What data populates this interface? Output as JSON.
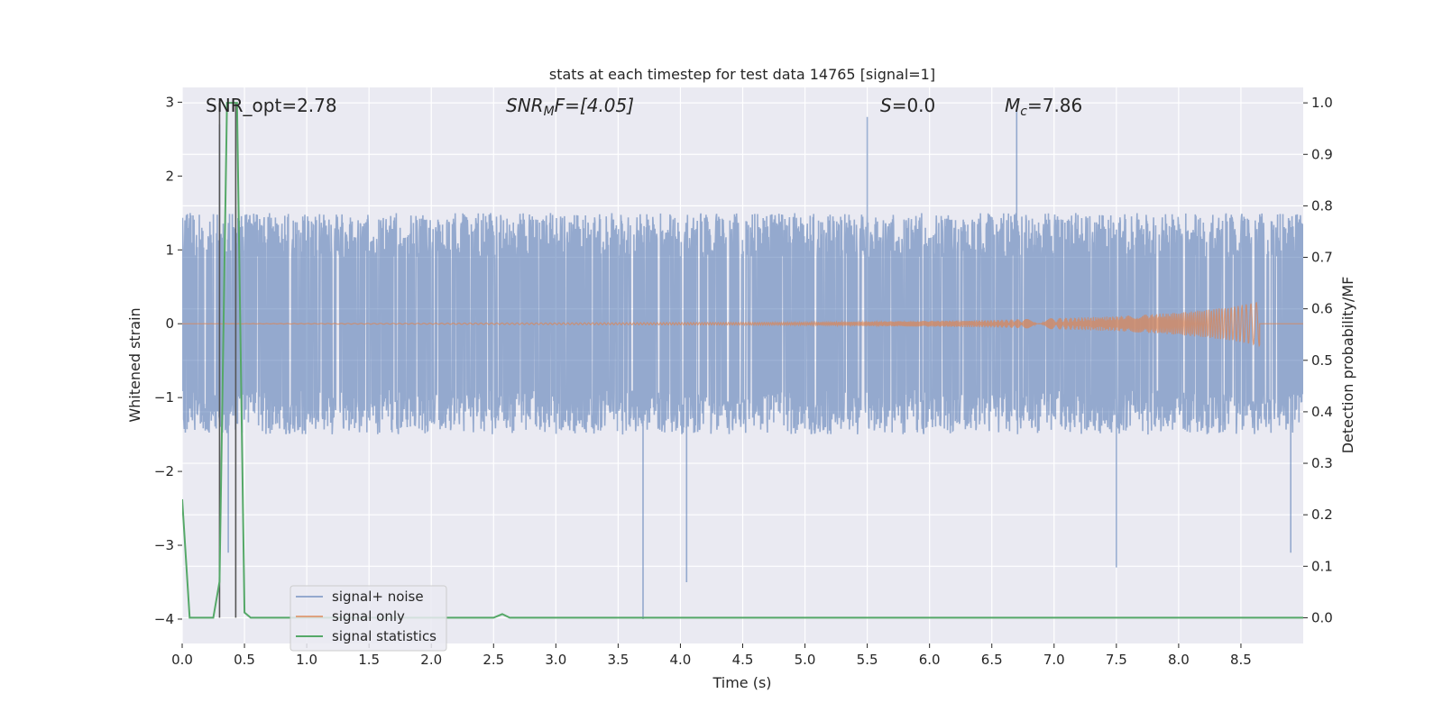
{
  "chart_data": {
    "type": "line",
    "title": "stats at each timestep for test data 14765 [signal=1]",
    "xlabel": "Time (s)",
    "ylabel": "Whitened strain",
    "y2label": "Detection probability/MF",
    "xlim": [
      0,
      9.0
    ],
    "ylim": [
      -4.33,
      3.2
    ],
    "y2lim": [
      -0.05,
      1.03
    ],
    "xticks": [
      "0.0",
      "0.5",
      "1.0",
      "1.5",
      "2.0",
      "2.5",
      "3.0",
      "3.5",
      "4.0",
      "4.5",
      "5.0",
      "5.5",
      "6.0",
      "6.5",
      "7.0",
      "7.5",
      "8.0",
      "8.5"
    ],
    "yticks": [
      "3",
      "2",
      "1",
      "0",
      "−1",
      "−2",
      "−3",
      "−4"
    ],
    "y2ticks": [
      "1.0",
      "0.9",
      "0.8",
      "0.7",
      "0.6",
      "0.5",
      "0.4",
      "0.3",
      "0.2",
      "0.1",
      "0.0"
    ],
    "grid": true,
    "legend_position": "lower-left",
    "annotations": {
      "snr_opt": "SNR_opt=2.78",
      "snr_mf_main": "SNR",
      "snr_mf_sub": "M",
      "snr_mf_rest": "F=[4.05]",
      "s_main": "S",
      "s_rest": "=0.0",
      "mc_main": "M",
      "mc_sub": "c",
      "mc_rest": "=7.86"
    },
    "series": [
      {
        "name": "signal+ noise",
        "color": "#4c72b0",
        "description": "whitened noisy strain, approx. ±1.5 band with spikes to ±3",
        "band": [
          -1.5,
          1.5
        ],
        "spikes": [
          [
            0.3,
            2.7
          ],
          [
            0.37,
            -3.1
          ],
          [
            3.7,
            -4.0
          ],
          [
            4.05,
            -3.5
          ],
          [
            7.5,
            -3.3
          ],
          [
            8.9,
            -3.1
          ],
          [
            5.5,
            2.8
          ],
          [
            6.7,
            2.9
          ]
        ]
      },
      {
        "name": "signal only",
        "color": "#dd8452",
        "description": "chirp signal growing in amplitude toward ~8.65 s",
        "envelope": [
          [
            0,
            0.0
          ],
          [
            5.0,
            0.02
          ],
          [
            6.5,
            0.05
          ],
          [
            7.5,
            0.1
          ],
          [
            8.0,
            0.15
          ],
          [
            8.4,
            0.22
          ],
          [
            8.65,
            0.3
          ]
        ]
      },
      {
        "name": "signal statistics",
        "color": "#55a868",
        "axis": "right",
        "x": [
          0.0,
          0.06,
          0.25,
          0.3,
          0.36,
          0.4,
          0.44,
          0.5,
          0.55,
          2.5,
          2.57,
          2.63,
          9.0
        ],
        "values": [
          0.23,
          0.0,
          0.0,
          0.07,
          1.0,
          1.0,
          1.0,
          0.01,
          0.0,
          0.0,
          0.007,
          0.0,
          0.0
        ]
      }
    ],
    "markers": [
      {
        "x": 0.3,
        "color": "#555555"
      },
      {
        "x": 0.43,
        "color": "#555555"
      }
    ]
  }
}
